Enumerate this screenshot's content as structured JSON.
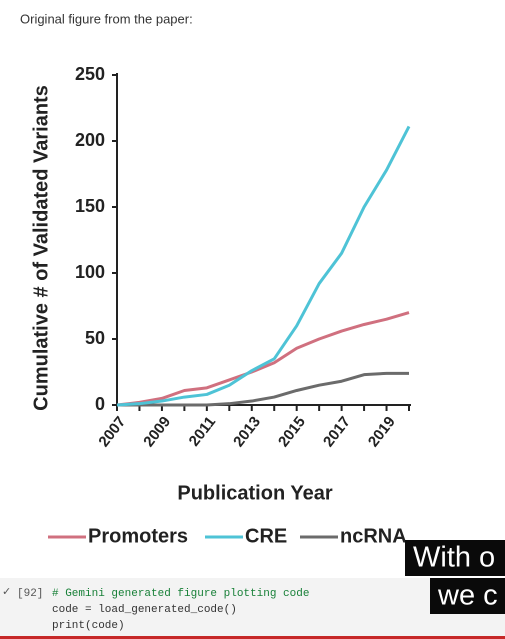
{
  "header": "Original figure from the paper:",
  "chart_data": {
    "type": "line",
    "xlabel": "Publication Year",
    "ylabel": "Cumulative # of Validated Variants",
    "x": [
      2007,
      2008,
      2009,
      2010,
      2011,
      2012,
      2013,
      2014,
      2015,
      2016,
      2017,
      2018,
      2019,
      2020
    ],
    "series": [
      {
        "name": "Promoters",
        "color": "#d0707f",
        "values": [
          0,
          2,
          5,
          11,
          13,
          19,
          25,
          32,
          43,
          50,
          56,
          61,
          65,
          70
        ]
      },
      {
        "name": "CRE",
        "color": "#4ec3d6",
        "values": [
          0,
          1,
          3,
          6,
          8,
          15,
          26,
          35,
          60,
          92,
          115,
          150,
          178,
          211
        ]
      },
      {
        "name": "ncRNA",
        "color": "#6b6b6b",
        "values": [
          0,
          0,
          0,
          0,
          0,
          1,
          3,
          6,
          11,
          15,
          18,
          23,
          24,
          24
        ]
      }
    ],
    "xlim": [
      2007,
      2020
    ],
    "xticks": [
      2007,
      2009,
      2011,
      2013,
      2015,
      2017,
      2019
    ],
    "xminor_ticks": [
      2008,
      2010,
      2012,
      2014,
      2016,
      2018,
      2020
    ],
    "ylim": [
      0,
      250
    ],
    "yticks": [
      0,
      50,
      100,
      150,
      200,
      250
    ],
    "legend": "bottom"
  },
  "code_cell": {
    "status": "✓",
    "prompt": "[92]",
    "lines": [
      "# Gemini generated figure plotting code",
      "code = load_generated_code()",
      "print(code)"
    ]
  },
  "captions": [
    "With o",
    "we c"
  ]
}
